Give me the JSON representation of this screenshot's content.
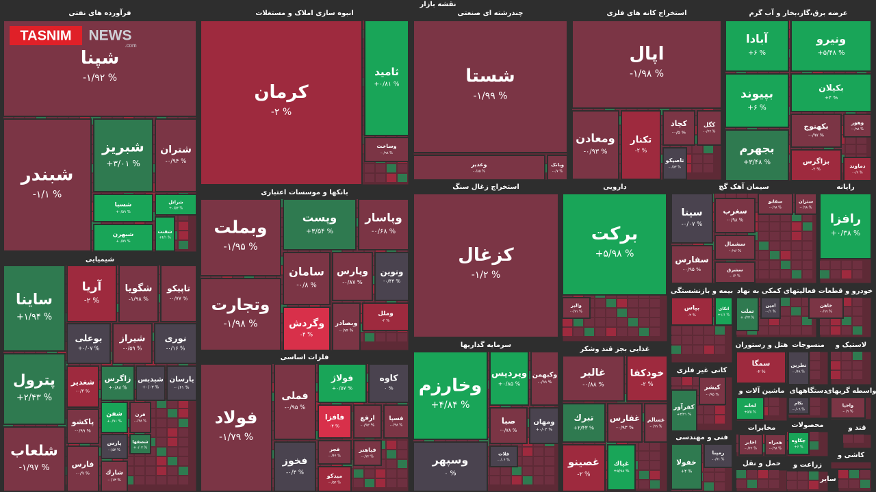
{
  "title": "نقشه بازار",
  "logo": {
    "brand": "TASNIM",
    "suffix": "NEWS",
    "domain": ".com"
  },
  "sectors": [
    {
      "name": "فرآورده های نفتی",
      "tiles": [
        {
          "name": "شپنا",
          "change": "-۱/۹۲ %"
        },
        {
          "name": "شبندر",
          "change": "-۱/۱ %"
        },
        {
          "name": "شبریز",
          "change": "+۳/۰۱ %"
        },
        {
          "name": "شتران",
          "change": "-۰/۹۴ %"
        },
        {
          "name": "شسپا",
          "change": "+۰/۵۹ %"
        },
        {
          "name": "شراتل",
          "change": "+۰/۵۳ %"
        },
        {
          "name": "شبهرن",
          "change": "+۰/۵۹ %"
        },
        {
          "name": "شفنت",
          "change": "+۴/۱ %"
        }
      ]
    },
    {
      "name": "شیمیایی",
      "tiles": [
        {
          "name": "ساینا",
          "change": "+۱/۹۴ %"
        },
        {
          "name": "آریا",
          "change": "-۲ %"
        },
        {
          "name": "شگویا",
          "change": "-۱/۹۸ %"
        },
        {
          "name": "تاپیکو",
          "change": "-۰/۷۷ %"
        },
        {
          "name": "پترول",
          "change": "+۲/۴۳ %"
        },
        {
          "name": "بوعلی",
          "change": "+۰/۰۷ %"
        },
        {
          "name": "شیراز",
          "change": "-۰/۵۹ %"
        },
        {
          "name": "نوری",
          "change": "-۰/۱۶ %"
        },
        {
          "name": "شلعاب",
          "change": "-۱/۹۷ %"
        },
        {
          "name": "شغدیر",
          "change": "-۰/۳ %"
        },
        {
          "name": "زاگرس",
          "change": "+۰/۸۸ %"
        },
        {
          "name": "شپدیس",
          "change": "+۰/۰۳ %"
        },
        {
          "name": "پارسان",
          "change": "-۰/۶۱ %"
        },
        {
          "name": "پاکشو",
          "change": "-۰/۹۹ %"
        },
        {
          "name": "شفن",
          "change": "+۰/۹۱ %"
        },
        {
          "name": "فرن",
          "change": "-۰/۴۸ %"
        },
        {
          "name": "پارس",
          "change": "-۰/۵۴ %"
        },
        {
          "name": "شصفها",
          "change": "+۰/۰۲ %"
        },
        {
          "name": "فارس",
          "change": "-۰/۹ %"
        },
        {
          "name": "شارك",
          "change": "-۰/۱۳ %"
        }
      ]
    },
    {
      "name": "انبوه سازی املاک و مستغلات",
      "tiles": [
        {
          "name": "کرمان",
          "change": "-۲ %"
        },
        {
          "name": "ثامید",
          "change": "+۰/۸۱ %"
        },
        {
          "name": "وساخت",
          "change": "-۰/۹۸ %"
        }
      ]
    },
    {
      "name": "بانکها و موسسات اعتباری",
      "tiles": [
        {
          "name": "وبملت",
          "change": "-۱/۹۵ %"
        },
        {
          "name": "وپست",
          "change": "+۳/۵۴ %"
        },
        {
          "name": "وپاسار",
          "change": "-۰/۶۸ %"
        },
        {
          "name": "وتجارت",
          "change": "-۱/۹۸ %"
        },
        {
          "name": "سامان",
          "change": "-۰/۸ %"
        },
        {
          "name": "وپارس",
          "change": "-۰/۸۷ %"
        },
        {
          "name": "ونوین",
          "change": "-۰/۴۴ %"
        },
        {
          "name": "وگردش",
          "change": "-۴ %"
        },
        {
          "name": "وبصادر",
          "change": "-۰/۷۴ %"
        },
        {
          "name": "وملل",
          "change": "-۲ %"
        }
      ]
    },
    {
      "name": "فلزات اساسی",
      "tiles": [
        {
          "name": "فولاد",
          "change": "-۱/۷۹ %"
        },
        {
          "name": "فملی",
          "change": "-۰/۹۵ %"
        },
        {
          "name": "فولاژ",
          "change": "+۰/۵۷ %"
        },
        {
          "name": "کاوه",
          "change": "۰ %"
        },
        {
          "name": "فخوز",
          "change": "-۰/۴ %"
        },
        {
          "name": "فافزا",
          "change": "-۴ %"
        },
        {
          "name": "ارفع",
          "change": "-۰/۹۳ %"
        },
        {
          "name": "فسپا",
          "change": "-۰/۹۸ %"
        },
        {
          "name": "فجر",
          "change": "-۰/۴۶ %"
        },
        {
          "name": "فباهنر",
          "change": "-۰/۲۲ %"
        },
        {
          "name": "میدکو",
          "change": "-۰/۵۴ %"
        }
      ]
    },
    {
      "name": "چندرشته ای صنعتی",
      "tiles": [
        {
          "name": "شستا",
          "change": "-۱/۹۹ %"
        },
        {
          "name": "وغدیر",
          "change": "-۰/۸۵ %"
        },
        {
          "name": "وبانک",
          "change": "-۰/۷ %"
        }
      ]
    },
    {
      "name": "استخراج زغال سنگ",
      "tiles": [
        {
          "name": "کزغال",
          "change": "-۱/۲ %"
        }
      ]
    },
    {
      "name": "سرمایه گذاریها",
      "tiles": [
        {
          "name": "وخارزم",
          "change": "+۴/۸۴ %"
        },
        {
          "name": "وپردیس",
          "change": "+۰/۸۵ %"
        },
        {
          "name": "وکبهمن",
          "change": "-۰/۹۹ %"
        },
        {
          "name": "وسپهر",
          "change": "۰ %"
        },
        {
          "name": "صبا",
          "change": "-۰/۷۸ %"
        },
        {
          "name": "ومهان",
          "change": "+۰/۰۲ %"
        },
        {
          "name": "فلات",
          "change": "-۰/۰۶ %"
        }
      ]
    },
    {
      "name": "استخراج کانه های فلزی",
      "tiles": [
        {
          "name": "اپال",
          "change": "-۱/۹۸ %"
        },
        {
          "name": "ومعادن",
          "change": "-۰/۹۳ %"
        },
        {
          "name": "تکنار",
          "change": "-۲ %"
        },
        {
          "name": "کچاد",
          "change": "-۰/۵ %"
        },
        {
          "name": "کگل",
          "change": "-۰/۶۲ %"
        },
        {
          "name": "تاصیکو",
          "change": "-۰/۵۳ %"
        }
      ]
    },
    {
      "name": "عرضه برق،گاز،بخار و آب گرم",
      "tiles": [
        {
          "name": "آبادا",
          "change": "+۶ %"
        },
        {
          "name": "ونیرو",
          "change": "+۵/۴۸ %"
        },
        {
          "name": "بپیوند",
          "change": "+۶ %"
        },
        {
          "name": "بکیلان",
          "change": "+۴ %"
        },
        {
          "name": "بجهرم",
          "change": "+۳/۴۸ %"
        },
        {
          "name": "بکهنوج",
          "change": "-۰/۹۷ %"
        },
        {
          "name": "وهور",
          "change": "-۰/۹۸ %"
        },
        {
          "name": "بزاگرس",
          "change": "-۲ %"
        },
        {
          "name": "دماوند",
          "change": "-۰/۹ %"
        }
      ]
    },
    {
      "name": "دارویی",
      "tiles": [
        {
          "name": "برکت",
          "change": "+۵/۹۸ %"
        },
        {
          "name": "والبر",
          "change": "-۰/۷۱ %"
        }
      ]
    },
    {
      "name": "سیمان آهک گچ",
      "tiles": [
        {
          "name": "سیتا",
          "change": "-۰/۰۷ %"
        },
        {
          "name": "سفانو",
          "change": "-۰/۹۸ %"
        },
        {
          "name": "ستران",
          "change": "-۰/۹۸ %"
        },
        {
          "name": "سغرب",
          "change": "-۰/۹۸ %"
        },
        {
          "name": "سفارس",
          "change": "-۰/۹۵ %"
        },
        {
          "name": "سشمال",
          "change": "-۰/۹۶ %"
        },
        {
          "name": "سشرق",
          "change": "-۰/۶ %"
        }
      ]
    },
    {
      "name": "رایانه",
      "tiles": [
        {
          "name": "رافزا",
          "change": "+۰/۳۸ %"
        }
      ]
    },
    {
      "name": "غذایی بجز قند وشکر",
      "tiles": [
        {
          "name": "غالبر",
          "change": "-۰/۸۸ %"
        },
        {
          "name": "خودکفا",
          "change": "-۲ %"
        },
        {
          "name": "تبرك",
          "change": "+۲/۴۳ %"
        },
        {
          "name": "غفارس",
          "change": "-۰/۹۳ %"
        },
        {
          "name": "غسالم",
          "change": "-۰/۹۹ %"
        },
        {
          "name": "غصینو",
          "change": "-۲ %"
        },
        {
          "name": "غپاك",
          "change": "+۵/۹۸ %"
        }
      ]
    },
    {
      "name": "بیمه و بازنشستگی",
      "tiles": [
        {
          "name": "بپاس",
          "change": "-۲ %"
        },
        {
          "name": "اتکای",
          "change": "+۱/۱ %"
        }
      ]
    },
    {
      "name": "فعالیتهای کمکی به نهاد",
      "tiles": [
        {
          "name": "تملت",
          "change": "+۰/۲۳ %"
        },
        {
          "name": "امین",
          "change": "-۰/۱ %"
        }
      ]
    },
    {
      "name": "خودرو و قطعات",
      "tiles": [
        {
          "name": "خاهن",
          "change": "-۰/۹۹ %"
        }
      ]
    },
    {
      "name": "کانی غیر فلزی",
      "tiles": [
        {
          "name": "کفرآور",
          "change": "+۳/۲۱ %"
        },
        {
          "name": "کیشر",
          "change": "-۰/۹۵ %"
        }
      ]
    },
    {
      "name": "فنی و مهندسی",
      "tiles": [
        {
          "name": "خفولا",
          "change": "+۴ %"
        },
        {
          "name": "رمپنا",
          "change": "-۰/۷۱ %"
        }
      ]
    },
    {
      "name": "هتل و رستوران",
      "tiles": [
        {
          "name": "سمگا",
          "change": "-۲ %"
        }
      ]
    },
    {
      "name": "منسوجات",
      "tiles": [
        {
          "name": "نطرین",
          "change": "-۰/۶۸ %"
        }
      ]
    },
    {
      "name": "لاستیک و",
      "tiles": []
    },
    {
      "name": "ماشین آلات و",
      "tiles": [
        {
          "name": "لخانه",
          "change": "+۵/۵ %"
        }
      ]
    },
    {
      "name": "دستگاههای",
      "tiles": [
        {
          "name": "بکام",
          "change": "-۰/۰۹ %"
        }
      ]
    },
    {
      "name": "واسطه گریهای",
      "tiles": [
        {
          "name": "واحیا",
          "change": "-۰/۹ %"
        }
      ]
    },
    {
      "name": "مخابرات",
      "tiles": [
        {
          "name": "اخابر",
          "change": "-۰/۶۶ %"
        },
        {
          "name": "همراه",
          "change": "-۰/۹۸ %"
        }
      ]
    },
    {
      "name": "محصولات",
      "tiles": [
        {
          "name": "چکاوه",
          "change": "+۶ %"
        }
      ]
    },
    {
      "name": "قند و",
      "tiles": []
    },
    {
      "name": "کاشی و",
      "tiles": []
    },
    {
      "name": "حمل و نقل",
      "tiles": []
    },
    {
      "name": "زراعت و",
      "tiles": []
    },
    {
      "name": "سایر",
      "tiles": []
    }
  ]
}
